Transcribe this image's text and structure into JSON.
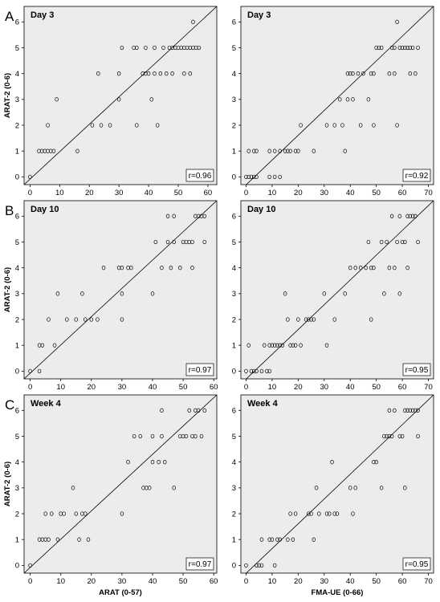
{
  "figure": {
    "y_axis_title": "ARAT-2 (0-6)",
    "x_axis_titles": [
      "ARAT (0-57)",
      "FMA-UE (0-66)"
    ]
  },
  "colors": {
    "background": "#ececec",
    "points": "#000000",
    "fit_line": "#000000"
  },
  "chart_data": [
    {
      "type": "scatter",
      "row_letter": "A",
      "title": "Day 3",
      "xlabel": "",
      "ylabel": "ARAT-2 (0-6)",
      "xlim": [
        -2,
        63
      ],
      "ylim": [
        -0.3,
        6.6
      ],
      "xticks": [
        0,
        10,
        20,
        30,
        40,
        50,
        60
      ],
      "yticks": [
        0,
        1,
        2,
        3,
        4,
        5,
        6
      ],
      "r_label": "r=0.96",
      "grid": false,
      "fit": {
        "x": [
          -2,
          63
        ],
        "y": [
          -0.3,
          6.6
        ]
      },
      "points": [
        [
          0,
          0
        ],
        [
          3,
          1
        ],
        [
          4,
          1
        ],
        [
          5,
          1
        ],
        [
          6,
          1
        ],
        [
          7,
          1
        ],
        [
          6,
          2
        ],
        [
          8,
          1
        ],
        [
          9,
          3
        ],
        [
          16,
          1
        ],
        [
          21,
          2
        ],
        [
          23,
          4
        ],
        [
          24,
          2
        ],
        [
          27,
          2
        ],
        [
          30,
          3
        ],
        [
          30,
          4
        ],
        [
          31,
          5
        ],
        [
          35,
          5
        ],
        [
          36,
          5
        ],
        [
          36,
          2
        ],
        [
          38,
          4
        ],
        [
          39,
          4
        ],
        [
          39,
          5
        ],
        [
          40,
          4
        ],
        [
          41,
          3
        ],
        [
          42,
          5
        ],
        [
          42,
          4
        ],
        [
          43,
          2
        ],
        [
          44,
          4
        ],
        [
          45,
          5
        ],
        [
          46,
          4
        ],
        [
          47,
          5
        ],
        [
          48,
          4
        ],
        [
          48,
          5
        ],
        [
          49,
          5
        ],
        [
          50,
          5
        ],
        [
          51,
          5
        ],
        [
          52,
          4
        ],
        [
          52,
          5
        ],
        [
          53,
          5
        ],
        [
          54,
          4
        ],
        [
          54,
          5
        ],
        [
          55,
          6
        ],
        [
          55,
          5
        ],
        [
          56,
          5
        ],
        [
          57,
          5
        ]
      ]
    },
    {
      "type": "scatter",
      "row_letter": "",
      "title": "Day 3",
      "xlabel": "",
      "ylabel": "",
      "xlim": [
        -2,
        72
      ],
      "ylim": [
        -0.3,
        6.6
      ],
      "xticks": [
        0,
        10,
        20,
        30,
        40,
        50,
        60,
        70
      ],
      "yticks": [
        0,
        1,
        2,
        3,
        4,
        5,
        6
      ],
      "r_label": "r=0.92",
      "grid": false,
      "fit": {
        "x": [
          -2,
          72
        ],
        "y": [
          -0.5,
          6.6
        ]
      },
      "points": [
        [
          0,
          0
        ],
        [
          1,
          0
        ],
        [
          2,
          0
        ],
        [
          3,
          0
        ],
        [
          4,
          0
        ],
        [
          1,
          1
        ],
        [
          3,
          1
        ],
        [
          4,
          1
        ],
        [
          9,
          0
        ],
        [
          11,
          0
        ],
        [
          9,
          1
        ],
        [
          11,
          1
        ],
        [
          13,
          0
        ],
        [
          13,
          1
        ],
        [
          15,
          1
        ],
        [
          16,
          1
        ],
        [
          17,
          1
        ],
        [
          19,
          1
        ],
        [
          20,
          1
        ],
        [
          21,
          2
        ],
        [
          26,
          1
        ],
        [
          31,
          2
        ],
        [
          34,
          2
        ],
        [
          36,
          3
        ],
        [
          37,
          2
        ],
        [
          38,
          1
        ],
        [
          39,
          3
        ],
        [
          39,
          4
        ],
        [
          40,
          4
        ],
        [
          41,
          3
        ],
        [
          41,
          4
        ],
        [
          43,
          4
        ],
        [
          44,
          2
        ],
        [
          45,
          4
        ],
        [
          47,
          3
        ],
        [
          48,
          4
        ],
        [
          49,
          2
        ],
        [
          49,
          4
        ],
        [
          50,
          5
        ],
        [
          51,
          5
        ],
        [
          52,
          5
        ],
        [
          55,
          4
        ],
        [
          56,
          5
        ],
        [
          57,
          5
        ],
        [
          57,
          4
        ],
        [
          58,
          6
        ],
        [
          58,
          2
        ],
        [
          59,
          5
        ],
        [
          60,
          5
        ],
        [
          61,
          5
        ],
        [
          62,
          5
        ],
        [
          63,
          4
        ],
        [
          63,
          5
        ],
        [
          64,
          5
        ],
        [
          65,
          4
        ],
        [
          66,
          5
        ]
      ]
    },
    {
      "type": "scatter",
      "row_letter": "B",
      "title": "Day 10",
      "xlabel": "",
      "ylabel": "ARAT-2 (0-6)",
      "xlim": [
        -2,
        61
      ],
      "ylim": [
        -0.3,
        6.6
      ],
      "xticks": [
        0,
        10,
        20,
        30,
        40,
        50,
        60
      ],
      "yticks": [
        0,
        1,
        2,
        3,
        4,
        5,
        6
      ],
      "r_label": "r=0.97",
      "grid": false,
      "fit": {
        "x": [
          -2,
          61
        ],
        "y": [
          -0.3,
          6.6
        ]
      },
      "points": [
        [
          0,
          0
        ],
        [
          3,
          1
        ],
        [
          3,
          0
        ],
        [
          4,
          1
        ],
        [
          6,
          2
        ],
        [
          8,
          1
        ],
        [
          9,
          3
        ],
        [
          12,
          2
        ],
        [
          15,
          2
        ],
        [
          17,
          3
        ],
        [
          18,
          2
        ],
        [
          20,
          2
        ],
        [
          22,
          2
        ],
        [
          24,
          4
        ],
        [
          29,
          4
        ],
        [
          30,
          4
        ],
        [
          30,
          3
        ],
        [
          30,
          2
        ],
        [
          32,
          4
        ],
        [
          33,
          4
        ],
        [
          40,
          3
        ],
        [
          41,
          5
        ],
        [
          43,
          4
        ],
        [
          45,
          6
        ],
        [
          45,
          5
        ],
        [
          46,
          4
        ],
        [
          47,
          6
        ],
        [
          47,
          5
        ],
        [
          49,
          4
        ],
        [
          50,
          5
        ],
        [
          51,
          5
        ],
        [
          52,
          5
        ],
        [
          53,
          4
        ],
        [
          53,
          5
        ],
        [
          54,
          6
        ],
        [
          55,
          6
        ],
        [
          56,
          6
        ],
        [
          57,
          6
        ],
        [
          57,
          5
        ]
      ]
    },
    {
      "type": "scatter",
      "row_letter": "",
      "title": "Day 10",
      "xlabel": "",
      "ylabel": "",
      "xlim": [
        -2,
        72
      ],
      "ylim": [
        -0.3,
        6.6
      ],
      "xticks": [
        0,
        10,
        20,
        30,
        40,
        50,
        60,
        70
      ],
      "yticks": [
        0,
        1,
        2,
        3,
        4,
        5,
        6
      ],
      "r_label": "r=0.95",
      "grid": false,
      "fit": {
        "x": [
          -2,
          72
        ],
        "y": [
          -0.5,
          6.6
        ]
      },
      "points": [
        [
          0,
          0
        ],
        [
          1,
          1
        ],
        [
          2,
          0
        ],
        [
          3,
          0
        ],
        [
          4,
          0
        ],
        [
          6,
          0
        ],
        [
          7,
          1
        ],
        [
          8,
          0
        ],
        [
          9,
          0
        ],
        [
          9,
          1
        ],
        [
          10,
          1
        ],
        [
          11,
          1
        ],
        [
          12,
          1
        ],
        [
          13,
          1
        ],
        [
          14,
          1
        ],
        [
          15,
          3
        ],
        [
          16,
          2
        ],
        [
          17,
          1
        ],
        [
          18,
          1
        ],
        [
          19,
          1
        ],
        [
          20,
          2
        ],
        [
          21,
          1
        ],
        [
          23,
          2
        ],
        [
          24,
          2
        ],
        [
          25,
          2
        ],
        [
          26,
          2
        ],
        [
          30,
          3
        ],
        [
          31,
          1
        ],
        [
          34,
          2
        ],
        [
          38,
          3
        ],
        [
          40,
          4
        ],
        [
          42,
          4
        ],
        [
          44,
          4
        ],
        [
          46,
          4
        ],
        [
          47,
          5
        ],
        [
          48,
          4
        ],
        [
          48,
          2
        ],
        [
          49,
          4
        ],
        [
          52,
          5
        ],
        [
          53,
          3
        ],
        [
          54,
          5
        ],
        [
          55,
          4
        ],
        [
          56,
          6
        ],
        [
          57,
          4
        ],
        [
          58,
          5
        ],
        [
          59,
          6
        ],
        [
          59,
          3
        ],
        [
          60,
          5
        ],
        [
          61,
          5
        ],
        [
          62,
          4
        ],
        [
          62,
          6
        ],
        [
          63,
          6
        ],
        [
          64,
          6
        ],
        [
          65,
          6
        ],
        [
          66,
          5
        ]
      ]
    },
    {
      "type": "scatter",
      "row_letter": "C",
      "title": "Week 4",
      "xlabel": "ARAT (0-57)",
      "ylabel": "ARAT-2 (0-6)",
      "xlim": [
        -2,
        61
      ],
      "ylim": [
        -0.3,
        6.6
      ],
      "xticks": [
        0,
        10,
        20,
        30,
        40,
        50,
        60
      ],
      "yticks": [
        0,
        1,
        2,
        3,
        4,
        5,
        6
      ],
      "r_label": "r=0.97",
      "grid": false,
      "fit": {
        "x": [
          -2,
          61
        ],
        "y": [
          -0.3,
          6.6
        ]
      },
      "points": [
        [
          0,
          0
        ],
        [
          3,
          1
        ],
        [
          4,
          1
        ],
        [
          5,
          1
        ],
        [
          5,
          2
        ],
        [
          6,
          1
        ],
        [
          7,
          2
        ],
        [
          9,
          1
        ],
        [
          10,
          2
        ],
        [
          11,
          2
        ],
        [
          14,
          3
        ],
        [
          15,
          2
        ],
        [
          16,
          1
        ],
        [
          17,
          2
        ],
        [
          18,
          2
        ],
        [
          19,
          1
        ],
        [
          30,
          2
        ],
        [
          32,
          4
        ],
        [
          34,
          5
        ],
        [
          36,
          5
        ],
        [
          37,
          3
        ],
        [
          38,
          3
        ],
        [
          39,
          3
        ],
        [
          40,
          4
        ],
        [
          40,
          5
        ],
        [
          42,
          4
        ],
        [
          43,
          6
        ],
        [
          43,
          5
        ],
        [
          44,
          4
        ],
        [
          47,
          3
        ],
        [
          49,
          5
        ],
        [
          50,
          5
        ],
        [
          51,
          5
        ],
        [
          52,
          6
        ],
        [
          53,
          5
        ],
        [
          54,
          6
        ],
        [
          54,
          5
        ],
        [
          55,
          6
        ],
        [
          56,
          5
        ],
        [
          57,
          6
        ]
      ]
    },
    {
      "type": "scatter",
      "row_letter": "",
      "title": "Week 4",
      "xlabel": "FMA-UE (0-66)",
      "ylabel": "",
      "xlim": [
        -2,
        72
      ],
      "ylim": [
        -0.3,
        6.6
      ],
      "xticks": [
        0,
        10,
        20,
        30,
        40,
        50,
        60,
        70
      ],
      "yticks": [
        0,
        1,
        2,
        3,
        4,
        5,
        6
      ],
      "r_label": "r=0.95",
      "grid": false,
      "fit": {
        "x": [
          -2,
          72
        ],
        "y": [
          -0.5,
          6.6
        ]
      },
      "points": [
        [
          0,
          0
        ],
        [
          4,
          0
        ],
        [
          5,
          0
        ],
        [
          6,
          0
        ],
        [
          6,
          1
        ],
        [
          9,
          1
        ],
        [
          10,
          1
        ],
        [
          11,
          0
        ],
        [
          12,
          1
        ],
        [
          13,
          1
        ],
        [
          16,
          1
        ],
        [
          17,
          2
        ],
        [
          18,
          1
        ],
        [
          19,
          2
        ],
        [
          24,
          2
        ],
        [
          25,
          2
        ],
        [
          26,
          1
        ],
        [
          27,
          3
        ],
        [
          28,
          2
        ],
        [
          31,
          2
        ],
        [
          32,
          2
        ],
        [
          33,
          4
        ],
        [
          34,
          2
        ],
        [
          35,
          2
        ],
        [
          40,
          3
        ],
        [
          41,
          2
        ],
        [
          42,
          3
        ],
        [
          49,
          4
        ],
        [
          50,
          4
        ],
        [
          52,
          3
        ],
        [
          53,
          5
        ],
        [
          54,
          5
        ],
        [
          55,
          6
        ],
        [
          55,
          5
        ],
        [
          56,
          5
        ],
        [
          57,
          6
        ],
        [
          59,
          5
        ],
        [
          60,
          5
        ],
        [
          61,
          6
        ],
        [
          61,
          3
        ],
        [
          62,
          6
        ],
        [
          63,
          6
        ],
        [
          64,
          6
        ],
        [
          65,
          6
        ],
        [
          66,
          6
        ],
        [
          66,
          5
        ]
      ]
    }
  ]
}
